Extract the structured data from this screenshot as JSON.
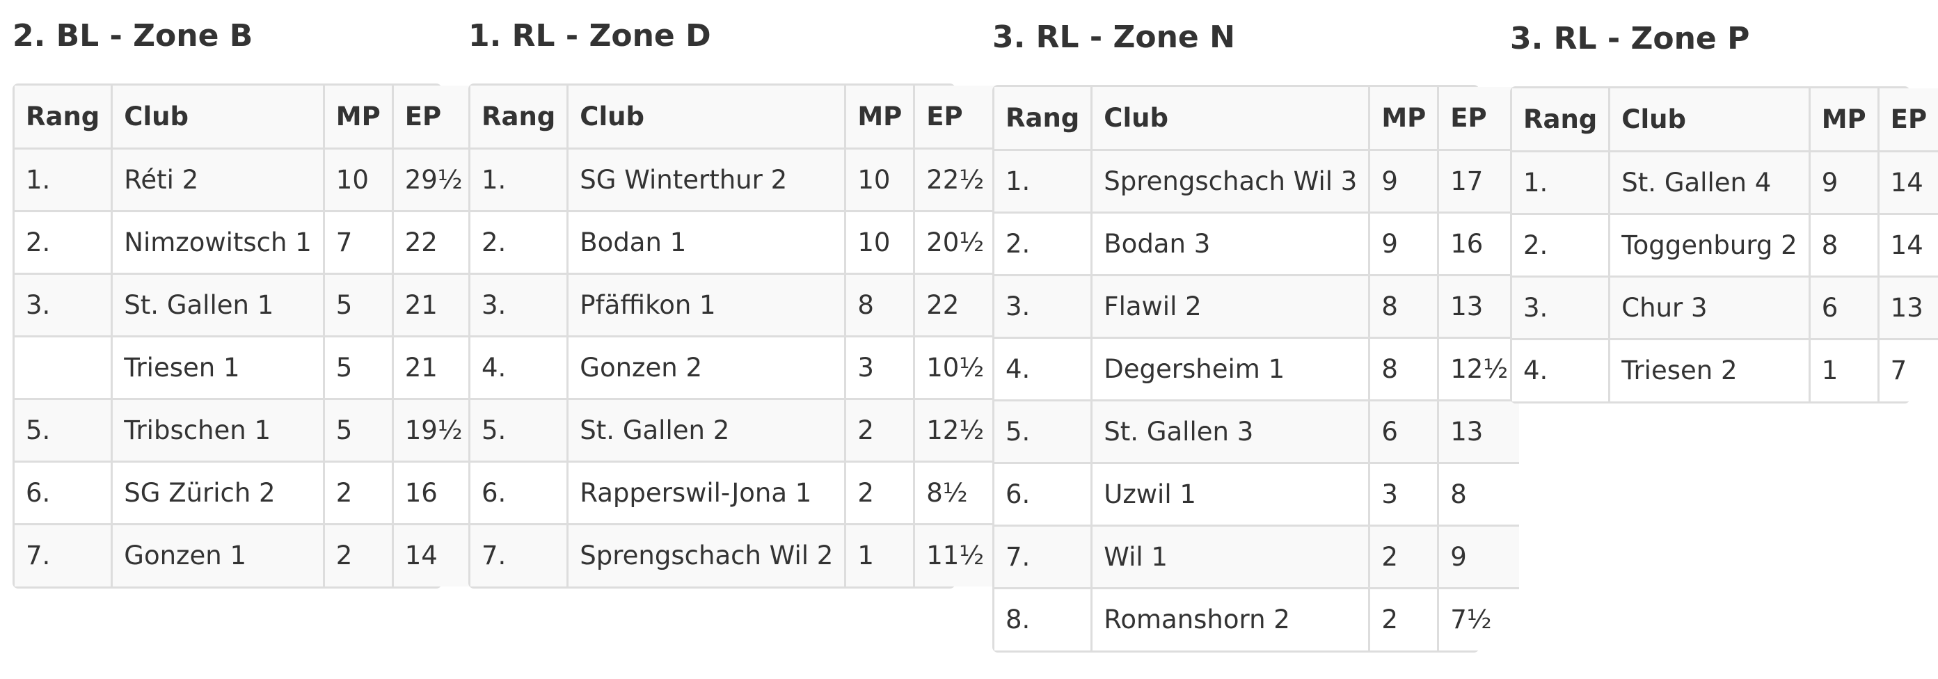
{
  "headers": [
    "Rang",
    "Club",
    "MP",
    "EP"
  ],
  "zones": [
    {
      "title": "2. BL - Zone B",
      "rows": [
        [
          "1.",
          "Réti 2",
          "10",
          "29½"
        ],
        [
          "2.",
          "Nimzowitsch 1",
          "7",
          "22"
        ],
        [
          "3.",
          "St. Gallen 1",
          "5",
          "21"
        ],
        [
          "",
          "Triesen 1",
          "5",
          "21"
        ],
        [
          "5.",
          "Tribschen 1",
          "5",
          "19½"
        ],
        [
          "6.",
          "SG Zürich 2",
          "2",
          "16"
        ],
        [
          "7.",
          "Gonzen 1",
          "2",
          "14"
        ]
      ]
    },
    {
      "title": "1. RL - Zone D",
      "rows": [
        [
          "1.",
          "SG Winterthur 2",
          "10",
          "22½"
        ],
        [
          "2.",
          "Bodan 1",
          "10",
          "20½"
        ],
        [
          "3.",
          "Pfäffikon 1",
          "8",
          "22"
        ],
        [
          "4.",
          "Gonzen 2",
          "3",
          "10½"
        ],
        [
          "5.",
          "St. Gallen 2",
          "2",
          "12½"
        ],
        [
          "6.",
          "Rapperswil-Jona 1",
          "2",
          "8½"
        ],
        [
          "7.",
          "Sprengschach Wil 2",
          "1",
          "11½"
        ]
      ]
    },
    {
      "title": "3. RL - Zone N",
      "rows": [
        [
          "1.",
          "Sprengschach Wil 3",
          "9",
          "17"
        ],
        [
          "2.",
          "Bodan 3",
          "9",
          "16"
        ],
        [
          "3.",
          "Flawil 2",
          "8",
          "13"
        ],
        [
          "4.",
          "Degersheim 1",
          "8",
          "12½"
        ],
        [
          "5.",
          "St. Gallen 3",
          "6",
          "13"
        ],
        [
          "6.",
          "Uzwil 1",
          "3",
          "8"
        ],
        [
          "7.",
          "Wil 1",
          "2",
          "9"
        ],
        [
          "8.",
          "Romanshorn 2",
          "2",
          "7½"
        ]
      ]
    },
    {
      "title": "3. RL - Zone P",
      "rows": [
        [
          "1.",
          "St. Gallen 4",
          "9",
          "14"
        ],
        [
          "2.",
          "Toggenburg 2",
          "8",
          "14"
        ],
        [
          "3.",
          "Chur 3",
          "6",
          "13"
        ],
        [
          "4.",
          "Triesen 2",
          "1",
          "7"
        ]
      ]
    }
  ]
}
